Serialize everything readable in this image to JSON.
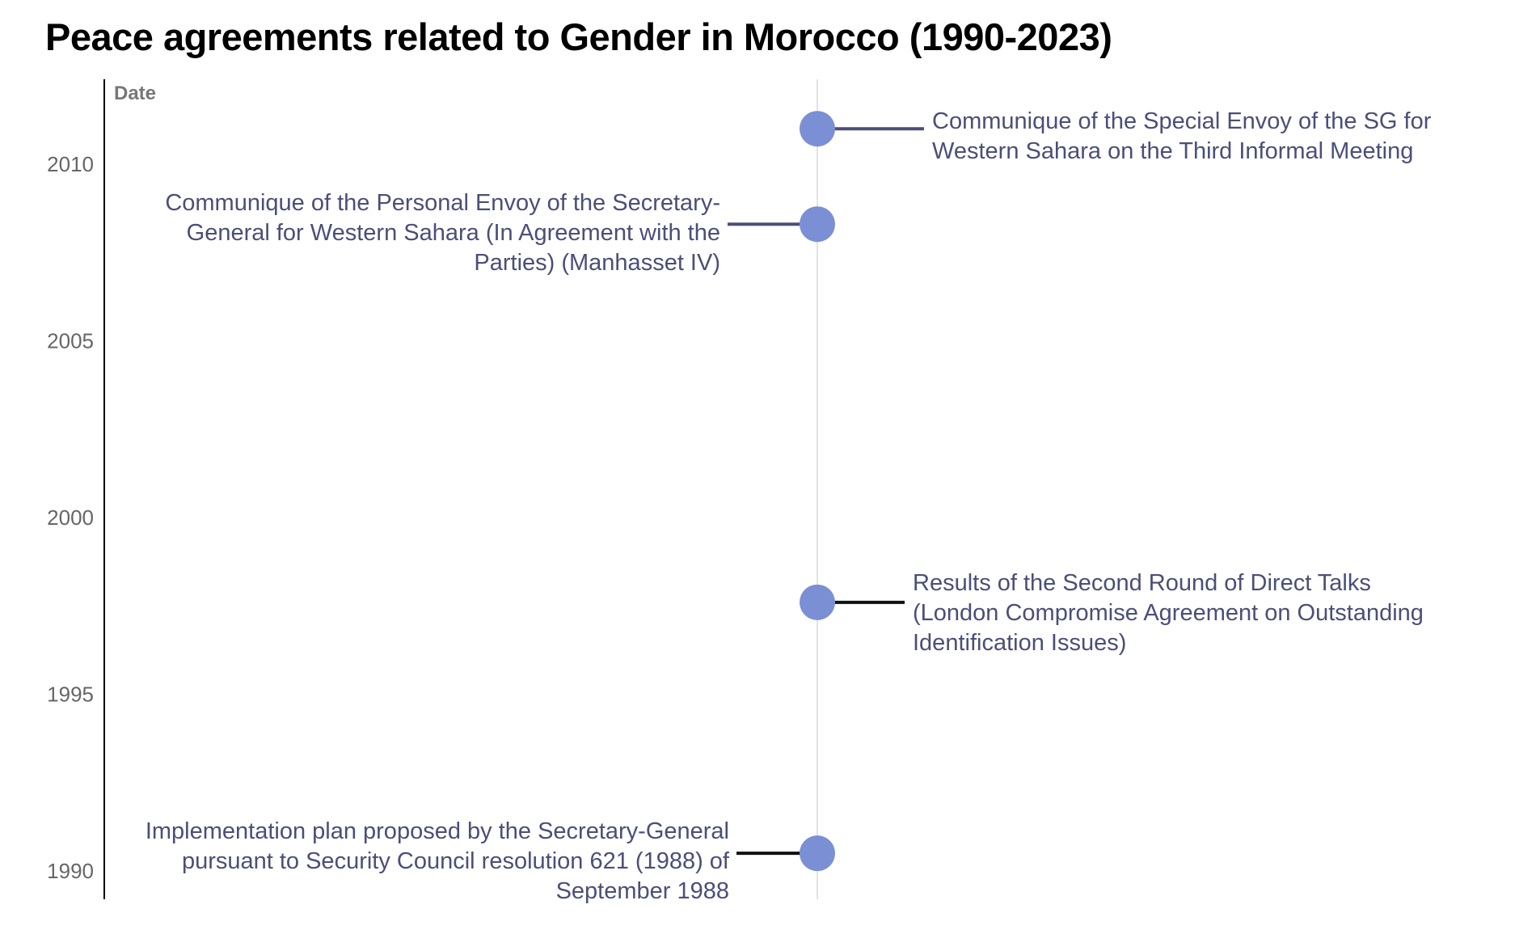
{
  "title": "Peace agreements related to Gender in Morocco (1990-2023)",
  "chart_data": {
    "type": "scatter",
    "title": "Peace agreements related to Gender in Morocco (1990-2023)",
    "ylabel": "Date",
    "xlabel": "",
    "y_ticks": [
      "1990",
      "1995",
      "2000",
      "2005",
      "2010"
    ],
    "y_tick_values": [
      1990,
      1995,
      2000,
      2005,
      2010
    ],
    "ylim": [
      1989.2,
      2012.4
    ],
    "grid": false,
    "point_color": "#7b8fd4",
    "label_color": "#4a4f78",
    "events": [
      {
        "date": 2011.0,
        "label": "Communique of the Special Envoy of the SG for Western Sahara on the Third Informal Meeting",
        "lines": [
          "Communique of the Special Envoy of the SG for",
          "Western Sahara on the Third Informal Meeting"
        ],
        "side": "right",
        "connector_color": "#4a4f78"
      },
      {
        "date": 2008.3,
        "label": "Communique of the Personal Envoy of the Secretary-General for Western Sahara (In Agreement with the Parties) (Manhasset IV)",
        "lines": [
          "Communique of the Personal Envoy of the Secretary-",
          "General for Western Sahara (In Agreement with the",
          "Parties) (Manhasset IV)"
        ],
        "side": "left",
        "connector_color": "#4a4f78"
      },
      {
        "date": 1997.6,
        "label": "Results of the Second Round of Direct Talks (London Compromise Agreement on Outstanding Identification Issues)",
        "lines": [
          "Results of the Second Round of Direct Talks",
          "(London Compromise Agreement on Outstanding",
          "Identification Issues)"
        ],
        "side": "right",
        "connector_color": "#111111"
      },
      {
        "date": 1990.5,
        "label": "Implementation plan proposed by the Secretary-General pursuant to Security Council resolution 621 (1988) of September 1988",
        "lines": [
          "Implementation plan proposed by the Secretary-General",
          "pursuant to Security Council resolution 621 (1988) of",
          "September 1988"
        ],
        "side": "left",
        "connector_color": "#111111"
      }
    ]
  }
}
